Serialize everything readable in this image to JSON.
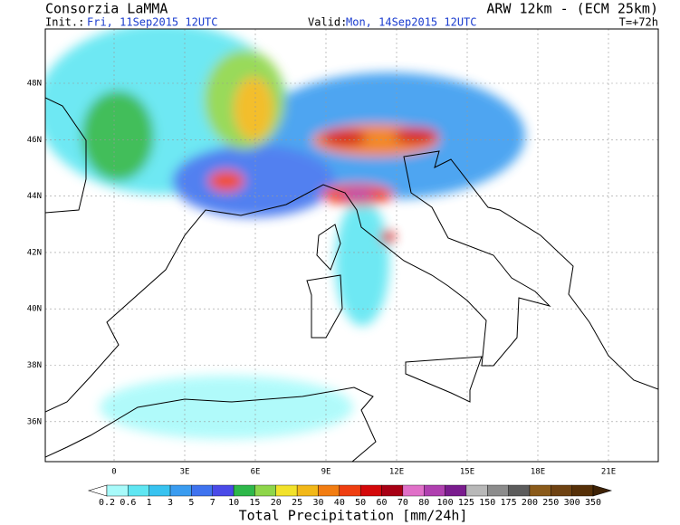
{
  "header": {
    "title": "Consorzia LaMMA",
    "model": "ARW 12km - (ECM 25km)",
    "init_label": "Init.:",
    "init": "Fri, 11Sep2015 12UTC",
    "valid_label": "Valid:",
    "valid": "Mon, 14Sep2015 12UTC",
    "lead": "T=+72h"
  },
  "map": {
    "lat_labels": [
      "48N",
      "46N",
      "44N",
      "42N",
      "40N",
      "38N",
      "36N"
    ],
    "lon_labels": [
      "0",
      "3E",
      "6E",
      "9E",
      "12E",
      "15E",
      "18E",
      "21E"
    ]
  },
  "legend": {
    "title": "Total Precipitation [mm/24h]",
    "levels": [
      "0.2",
      "0.6",
      "1",
      "3",
      "5",
      "7",
      "10",
      "15",
      "20",
      "25",
      "30",
      "40",
      "50",
      "60",
      "70",
      "80",
      "100",
      "125",
      "150",
      "175",
      "200",
      "250",
      "300",
      "350"
    ],
    "colors": [
      "#a8fafa",
      "#5fe6f2",
      "#38c3f0",
      "#3a9cf0",
      "#3f73ef",
      "#4a4ae8",
      "#2eb84a",
      "#8ed64a",
      "#f2e22a",
      "#f2b818",
      "#f27d12",
      "#ef3e10",
      "#d4080a",
      "#a80014",
      "#e070c8",
      "#b040b0",
      "#7a1c8e",
      "#b8b8b8",
      "#8c8c8c",
      "#5c5c5c",
      "#8a5a1a",
      "#6e4212",
      "#563008"
    ],
    "under_color": "#ffffff",
    "over_color": "#3e2206"
  }
}
